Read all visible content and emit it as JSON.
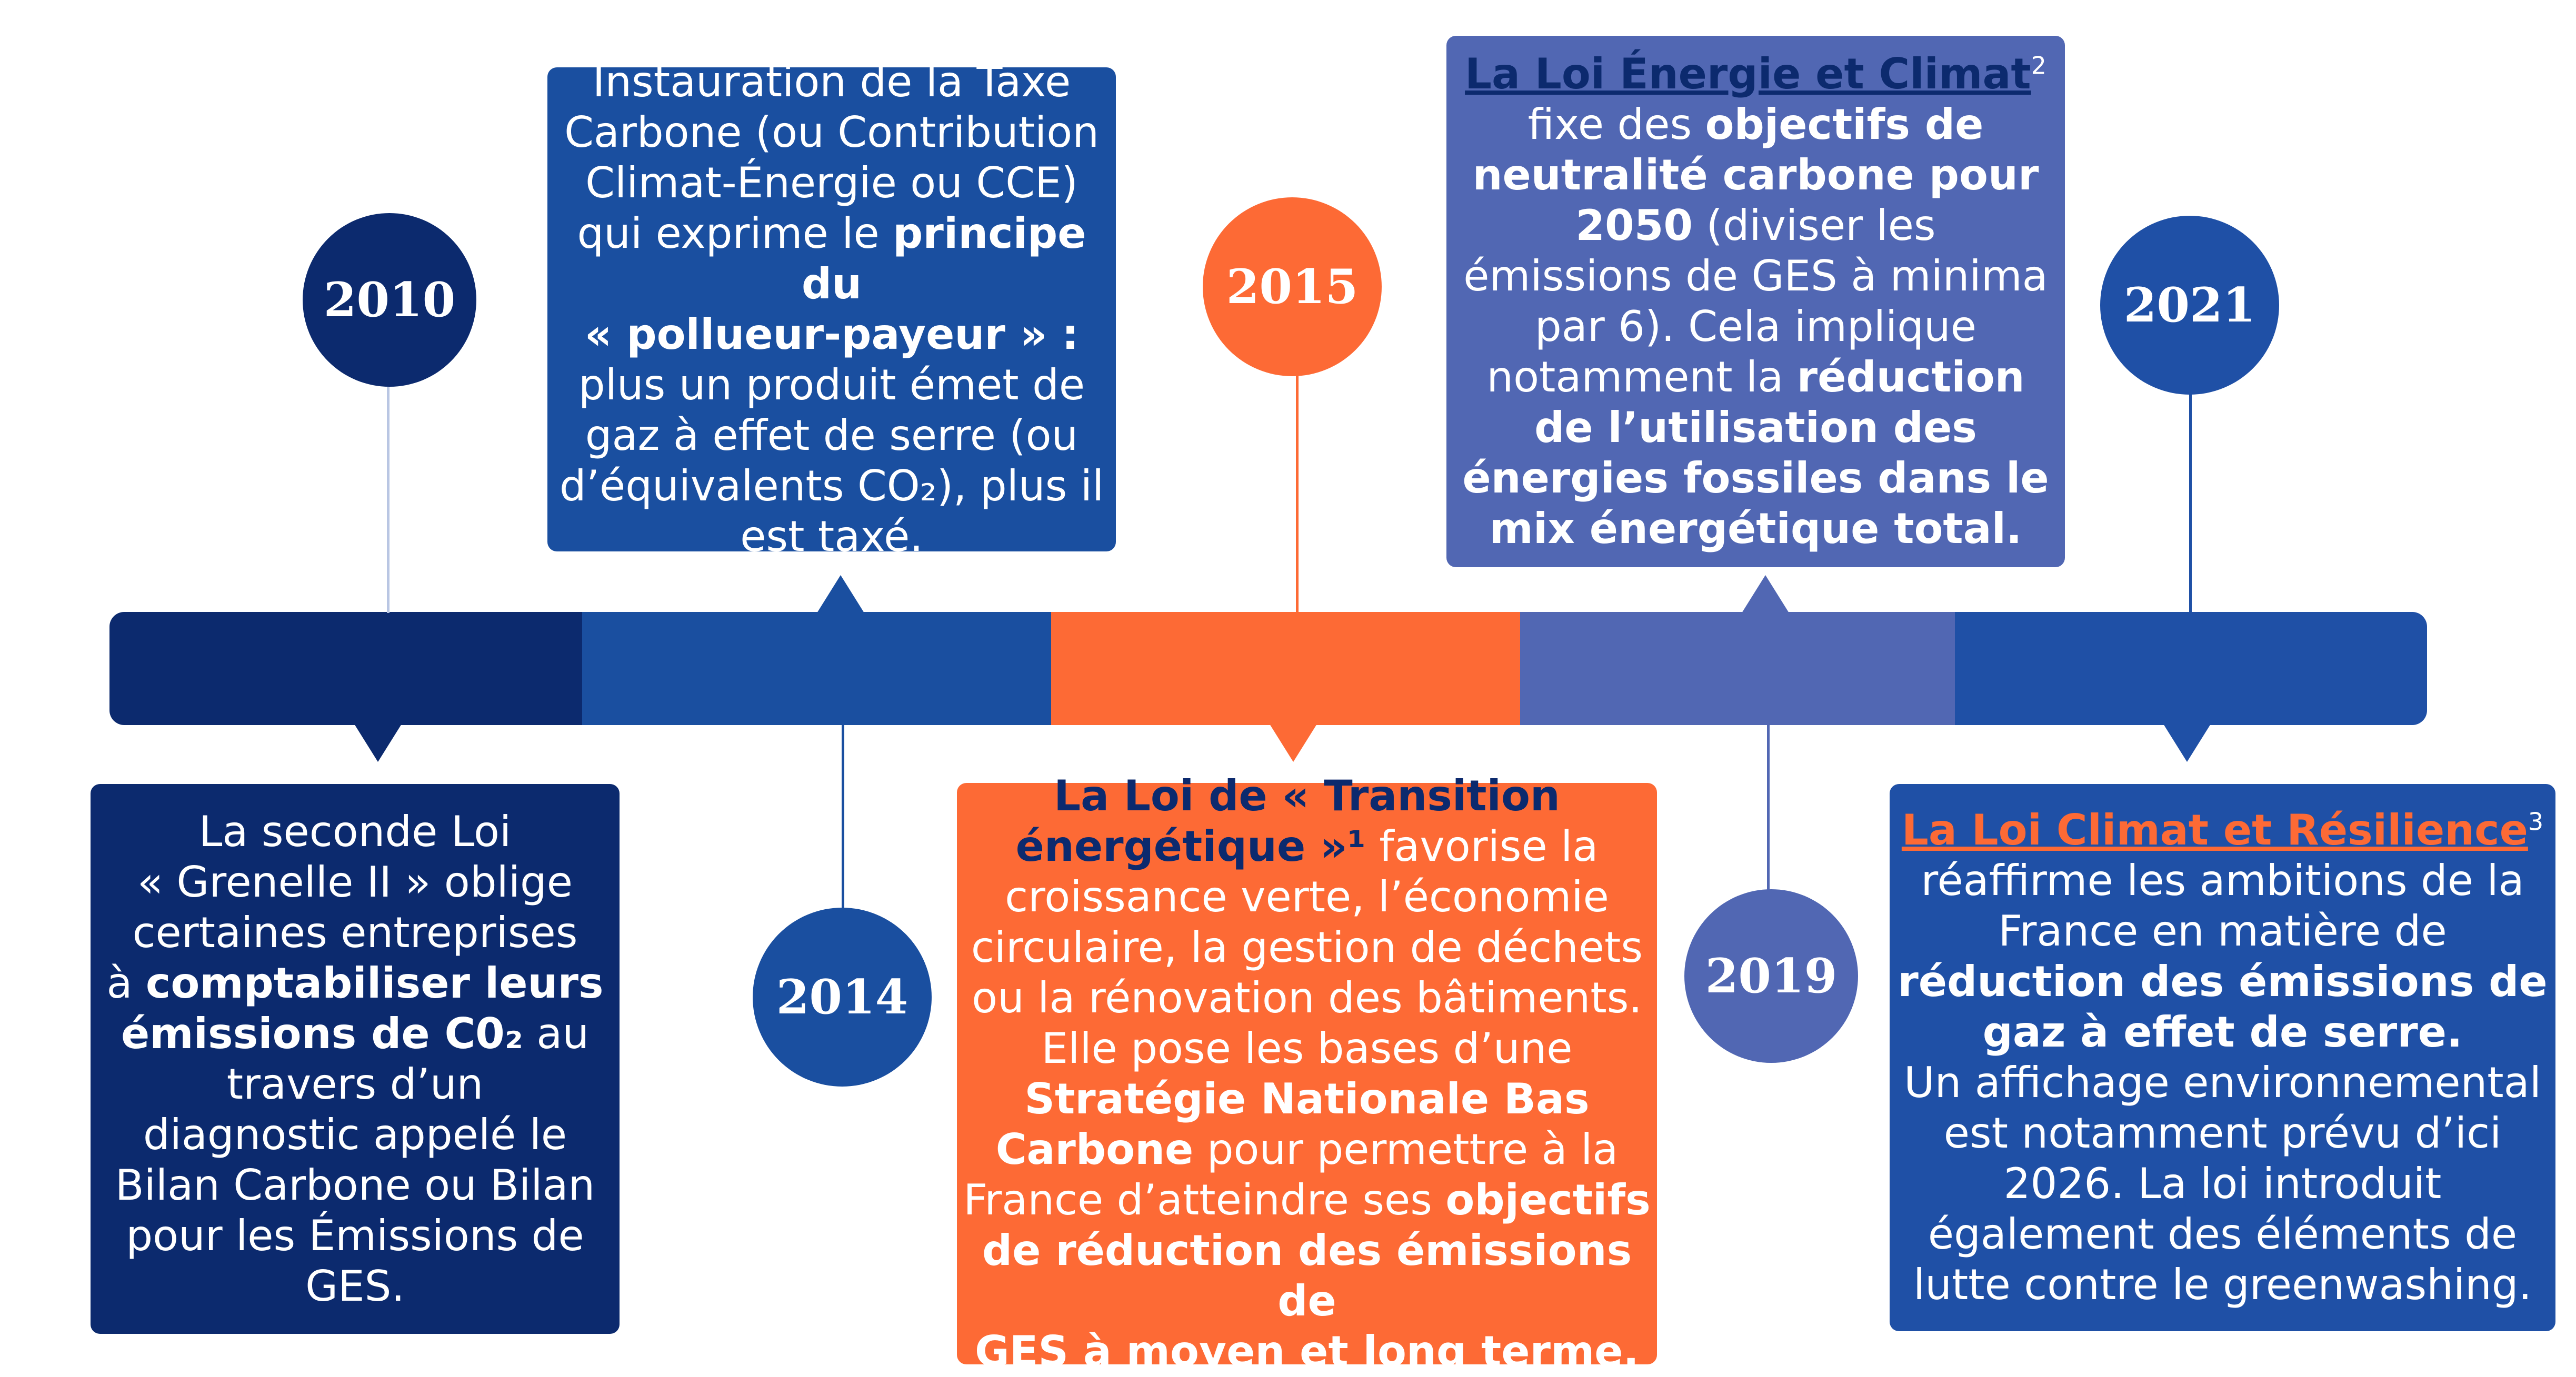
{
  "colors": {
    "navy": "#0c2a6e",
    "blue": "#1a4fa0",
    "orange": "#fd6a35",
    "periwinkle": "#5167b3",
    "royal": "#1f50a6"
  },
  "timeline": {
    "segments": [
      "navy",
      "blue",
      "orange",
      "periwinkle",
      "royal"
    ]
  },
  "years": {
    "y2010": "2010",
    "y2014": "2014",
    "y2015": "2015",
    "y2019": "2019",
    "y2021": "2021"
  },
  "box2010": {
    "l1": "La seconde Loi",
    "l2": "« Grenelle II » oblige",
    "l3": "certaines entreprises",
    "l4a": "à ",
    "l4b": "comptabiliser leurs",
    "l5a": "émissions de C0₂",
    "l5b": " au",
    "l6": "travers d’un",
    "l7": "diagnostic appelé le",
    "l8": "Bilan Carbone ou Bilan",
    "l9": "pour les Émissions de",
    "l10": "GES."
  },
  "box2014": {
    "l1": "Instauration de la Taxe",
    "l2": "Carbone (ou Contribution",
    "l3": "Climat-Énergie ou CCE)",
    "l4a": "qui exprime le ",
    "l4b": "principe du",
    "l5": "« pollueur-payeur » :",
    "l6": "plus un produit émet de",
    "l7": "gaz à effet de serre (ou",
    "l8": "d’équivalents CO₂), plus il",
    "l9": "est taxé."
  },
  "box2015": {
    "l1": "La Loi de « Transition",
    "l2a": "énergétique »",
    "l2b": "¹",
    "l2c": " favorise la",
    "l3": "croissance verte, l’économie",
    "l4": "circulaire, la gestion de déchets",
    "l5": "ou la rénovation des bâtiments.",
    "l6": "Elle pose les bases d’une",
    "l7": "Stratégie Nationale Bas",
    "l8a": "Carbone",
    "l8b": " pour permettre à la",
    "l9a": "France d’atteindre ses ",
    "l9b": "objectifs",
    "l10": "de réduction des émissions de",
    "l11": "GES à moyen et long terme."
  },
  "box2019": {
    "l1a": "La Loi Énergie et Climat",
    "l1b": "2",
    "l2a": "fixe des ",
    "l2b": "objectifs de",
    "l3": "neutralité carbone pour",
    "l4a": "2050",
    "l4b": " (diviser les",
    "l5": "émissions de GES à minima",
    "l6": "par 6). Cela implique",
    "l7a": "notamment la ",
    "l7b": "réduction",
    "l8": "de l’utilisation des",
    "l9": "énergies fossiles dans le",
    "l10": "mix énergétique total."
  },
  "box2021": {
    "l1a": "La Loi Climat et Résilience",
    "l1b": "3",
    "l2": "réaffirme les ambitions de la",
    "l3": "France en matière de",
    "l4": "réduction des émissions de",
    "l5": "gaz à effet de serre.",
    "l6": "Un affichage environnemental",
    "l7": "est notamment prévu d’ici",
    "l8": "2026. La loi introduit",
    "l9": "également des éléments de",
    "l10": "lutte contre le greenwashing."
  }
}
